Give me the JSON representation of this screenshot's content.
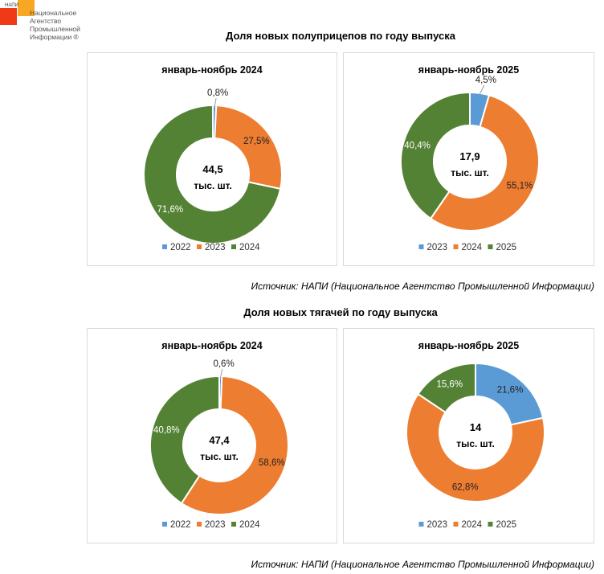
{
  "logo": {
    "small_text": "НАПИ",
    "lines": [
      "Национальное",
      "Агентство",
      "Промышленной",
      "Информации ®"
    ]
  },
  "colors": {
    "y2022": "#5B9BD5",
    "y2023": "#ED7D31",
    "y2024": "#548235"
  },
  "sections": [
    {
      "title": "Доля новых полуприцепов по году выпуска",
      "source": "Источник: НАПИ (Национальное Агентство Промышленной Информации)"
    },
    {
      "title": "Доля новых тягачей по году выпуска",
      "source": "Источник: НАПИ (Национальное Агентство Промышленной Информации)"
    }
  ],
  "chart_data": [
    {
      "type": "pie",
      "donut": true,
      "title": "январь-ноябрь 2024",
      "center_value": "44,5",
      "center_unit": "тыс. шт.",
      "categories": [
        "2022",
        "2023",
        "2024"
      ],
      "values": [
        0.8,
        27.5,
        71.6
      ],
      "labels": [
        "0,8%",
        "27,5%",
        "71,6%"
      ],
      "colors": [
        "#5B9BD5",
        "#ED7D31",
        "#548235"
      ],
      "legend": "bottom"
    },
    {
      "type": "pie",
      "donut": true,
      "title": "январь-ноябрь 2025",
      "center_value": "17,9",
      "center_unit": "тыс. шт.",
      "categories": [
        "2023",
        "2024",
        "2025"
      ],
      "values": [
        4.5,
        55.1,
        40.4
      ],
      "labels": [
        "4,5%",
        "55,1%",
        "40,4%"
      ],
      "colors": [
        "#5B9BD5",
        "#ED7D31",
        "#548235"
      ],
      "legend": "bottom"
    },
    {
      "type": "pie",
      "donut": true,
      "title": "январь-ноябрь 2024",
      "center_value": "47,4",
      "center_unit": "тыс. шт.",
      "categories": [
        "2022",
        "2023",
        "2024"
      ],
      "values": [
        0.6,
        58.6,
        40.8
      ],
      "labels": [
        "0,6%",
        "58,6%",
        "40,8%"
      ],
      "colors": [
        "#5B9BD5",
        "#ED7D31",
        "#548235"
      ],
      "legend": "bottom"
    },
    {
      "type": "pie",
      "donut": true,
      "title": "январь-ноябрь 2025",
      "center_value": "14",
      "center_unit": "тыс. шт.",
      "categories": [
        "2023",
        "2024",
        "2025"
      ],
      "values": [
        21.6,
        62.8,
        15.6
      ],
      "labels": [
        "21,6%",
        "62,8%",
        "15,6%"
      ],
      "colors": [
        "#5B9BD5",
        "#ED7D31",
        "#548235"
      ],
      "legend": "bottom"
    }
  ]
}
